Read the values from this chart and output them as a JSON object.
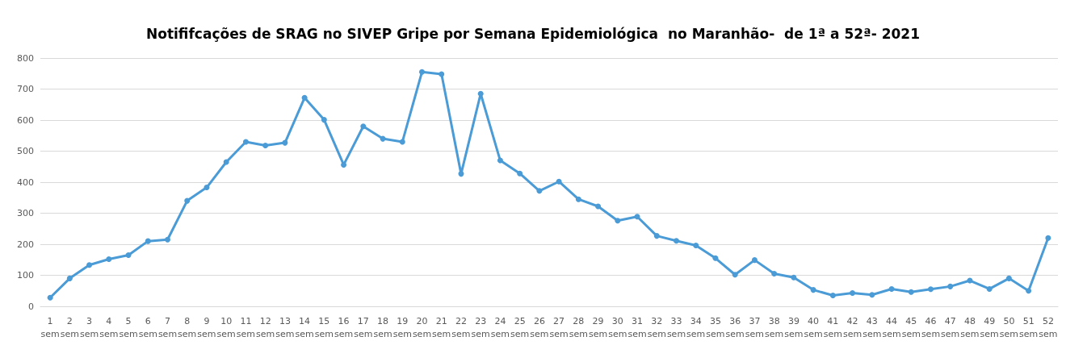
{
  "chart_data": {
    "type": "line",
    "title": "Notififcações de SRAG no SIVEP Gripe por Semana Epidemiológica  no Maranhão-  de 1ª a 52ª- 2021",
    "categories": [
      "1 sem",
      "2 sem",
      "3 sem",
      "4 sem",
      "5 sem",
      "6 sem",
      "7 sem",
      "8 sem",
      "9 sem",
      "10 sem",
      "11 sem",
      "12 sem",
      "13 sem",
      "14 sem",
      "15 sem",
      "16 sem",
      "17 sem",
      "18 sem",
      "19 sem",
      "20 sem",
      "21 sem",
      "22 sem",
      "23 sem",
      "24 sem",
      "25 sem",
      "26 sem",
      "27 sem",
      "28 sem",
      "29 sem",
      "30 sem",
      "31 sem",
      "32 sem",
      "33 sem",
      "34 sem",
      "35 sem",
      "36 sem",
      "37 sem",
      "38 sem",
      "39 sem",
      "40 sem",
      "41 sem",
      "42 sem",
      "43 sem",
      "44 sem",
      "45 sem",
      "46 sem",
      "47 sem",
      "48 sem",
      "49 sem",
      "50 sem",
      "51 sem",
      "52 sem"
    ],
    "series": [
      {
        "color": "#4a9bd6",
        "values": [
          28,
          90,
          133,
          152,
          165,
          210,
          215,
          340,
          383,
          465,
          530,
          518,
          527,
          672,
          601,
          456,
          580,
          540,
          530,
          755,
          748,
          427,
          685,
          470,
          428,
          372,
          402,
          345,
          322,
          276,
          289,
          227,
          211,
          196,
          155,
          102,
          149,
          105,
          93,
          53,
          35,
          43,
          37,
          56,
          46,
          55,
          64,
          83,
          56,
          90,
          50,
          220
        ]
      }
    ],
    "ylim": [
      0,
      800
    ],
    "yticks": [
      0,
      100,
      200,
      300,
      400,
      500,
      600,
      700,
      800
    ],
    "grid": "y",
    "marker": "circle",
    "line_style": "solid"
  }
}
